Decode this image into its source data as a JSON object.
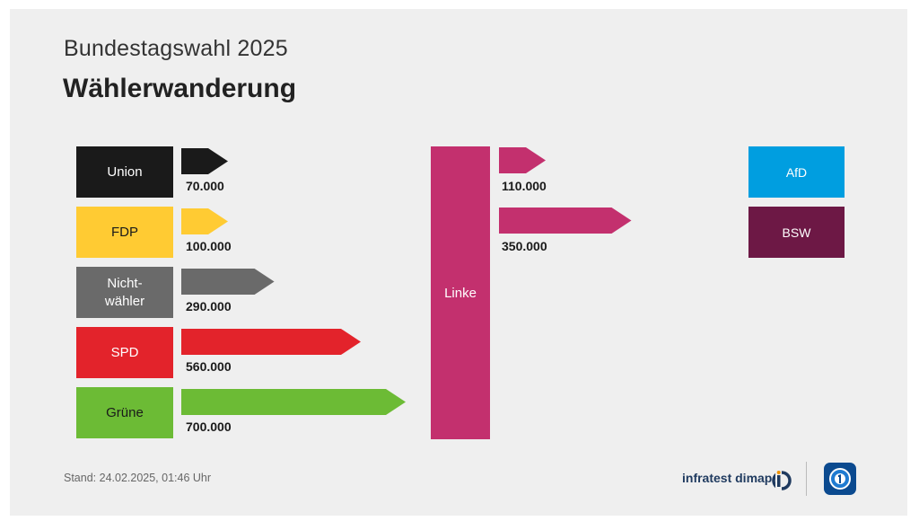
{
  "header": {
    "subtitle": "Bundestagswahl 2025",
    "title": "Wählerwanderung"
  },
  "chart_data": {
    "type": "bar",
    "title": "Wählerwanderung",
    "center": {
      "label": "Linke",
      "color": "#c3306e"
    },
    "inflows": [
      {
        "source": "Union",
        "value": 70000,
        "label": "70.000",
        "color": "#1a1a1a",
        "text_color": "#ffffff"
      },
      {
        "source": "FDP",
        "value": 100000,
        "label": "100.000",
        "color": "#ffcb33",
        "text_color": "#1a1a1a"
      },
      {
        "source": "Nicht-\nwähler",
        "value": 290000,
        "label": "290.000",
        "color": "#6a6a6a",
        "text_color": "#ffffff"
      },
      {
        "source": "SPD",
        "value": 560000,
        "label": "560.000",
        "color": "#e3232b",
        "text_color": "#ffffff"
      },
      {
        "source": "Grüne",
        "value": 700000,
        "label": "700.000",
        "color": "#6cbb35",
        "text_color": "#1a1a1a"
      }
    ],
    "outflows": [
      {
        "target": "AfD",
        "value": 110000,
        "label": "110.000",
        "color": "#009ee0"
      },
      {
        "target": "BSW",
        "value": 350000,
        "label": "350.000",
        "color": "#6d1845"
      }
    ]
  },
  "footer": {
    "stand": "Stand:  24.02.2025, 01:46 Uhr",
    "brand": "infratest dimap"
  },
  "icons": {
    "brand": "infratest-dimap-logo-icon",
    "broadcaster": "tagesschau-logo-icon"
  }
}
